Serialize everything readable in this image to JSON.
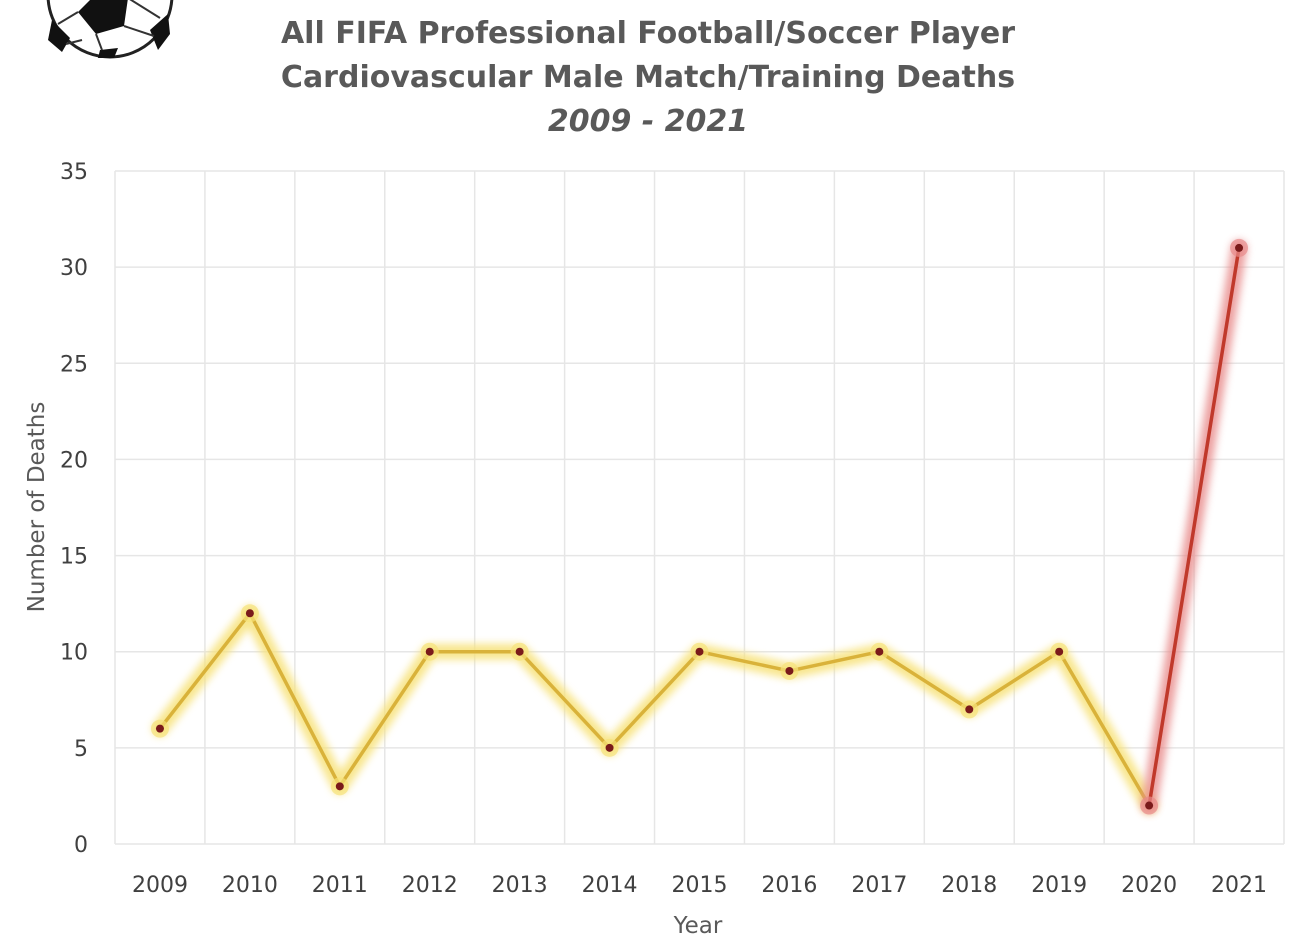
{
  "chart_data": {
    "type": "line",
    "title_lines": [
      "All FIFA Professional Football/Soccer Player",
      "Cardiovascular Male Match/Training Deaths",
      "2009 - 2021"
    ],
    "xlabel": "Year",
    "ylabel": "Number of Deaths",
    "categories": [
      "2009",
      "2010",
      "2011",
      "2012",
      "2013",
      "2014",
      "2015",
      "2016",
      "2017",
      "2018",
      "2019",
      "2020",
      "2021"
    ],
    "values": [
      6,
      12,
      3,
      10,
      10,
      5,
      10,
      9,
      10,
      7,
      10,
      2,
      31
    ],
    "ylim": [
      0,
      35
    ],
    "yticks": [
      "0",
      "5",
      "10",
      "15",
      "20",
      "25",
      "30",
      "35"
    ],
    "grid": true,
    "colors": {
      "main_line": "#d9b23a",
      "main_glow": "#f7e27a",
      "highlight_line": "#c0392b",
      "highlight_glow": "#e88a8a",
      "marker": "#7a1a1a",
      "grid": "#e6e6e6"
    },
    "highlight_segment": [
      "2020",
      "2021"
    ],
    "decoration": "soccer-ball-icon"
  }
}
